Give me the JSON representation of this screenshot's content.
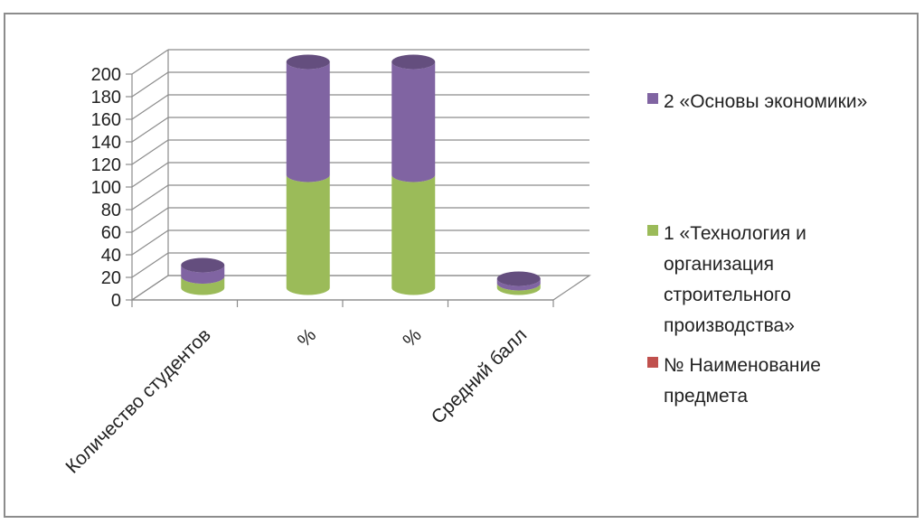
{
  "chart_data": {
    "type": "bar",
    "stacked": true,
    "three_d": true,
    "categories": [
      "Количество студентов",
      "%",
      "%",
      "Средний балл"
    ],
    "series": [
      {
        "name": "№ Наименование предмета",
        "color": "#c0504d",
        "values": [
          0,
          0,
          0,
          0
        ]
      },
      {
        "name": "1 «Технология и организация строительного производства»",
        "color": "#9bbb59",
        "values": [
          10,
          100,
          100,
          4
        ]
      },
      {
        "name": "2 «Основы экономики»",
        "color": "#8064a2",
        "values": [
          10,
          100,
          100,
          4
        ]
      }
    ],
    "y_ticks": [
      "0",
      "20",
      "40",
      "60",
      "80",
      "100",
      "120",
      "140",
      "160",
      "180",
      "200"
    ],
    "ylim": [
      0,
      200
    ],
    "grid": true,
    "legend_position": "right"
  },
  "legend": {
    "items": [
      {
        "label": "2 «Основы экономики»",
        "color": "#8064a2"
      },
      {
        "label": "1 «Технология и\nорганизация\nстроительного\nпроизводства»",
        "color": "#9bbb59"
      },
      {
        "label": "№ Наименование\nпредмета",
        "color": "#c0504d"
      }
    ]
  }
}
